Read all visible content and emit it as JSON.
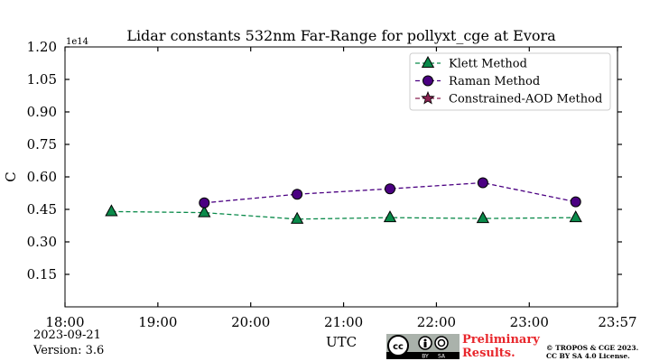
{
  "chart_data": {
    "type": "line",
    "title": "Lidar constants 532nm Far-Range for pollyxt_cge at Evora",
    "xlabel": "UTC",
    "ylabel": "C",
    "offset_text": "1e14",
    "xlim": [
      "18:00",
      "23:57"
    ],
    "ylim": [
      0,
      1.2
    ],
    "x_ticks": [
      "18:00",
      "19:00",
      "20:00",
      "21:00",
      "22:00",
      "23:00",
      "23:57"
    ],
    "y_ticks": [
      "0.15",
      "0.30",
      "0.45",
      "0.60",
      "0.75",
      "0.90",
      "1.05",
      "1.20"
    ],
    "legend_position": "top-right",
    "grid": false,
    "series": [
      {
        "name": "Klett Method",
        "marker": "triangle",
        "color": "#0a8a4a",
        "x": [
          "18:30",
          "19:30",
          "20:30",
          "21:30",
          "22:30",
          "23:30"
        ],
        "values": [
          0.44,
          0.435,
          0.405,
          0.412,
          0.408,
          0.412
        ]
      },
      {
        "name": "Raman Method",
        "marker": "circle",
        "color": "#4b0082",
        "x": [
          "19:30",
          "20:30",
          "21:30",
          "22:30",
          "23:30"
        ],
        "values": [
          0.48,
          0.52,
          0.545,
          0.573,
          0.485
        ]
      },
      {
        "name": "Constrained-AOD Method",
        "marker": "star",
        "color": "#8b2252",
        "x": [],
        "values": []
      }
    ]
  },
  "footer": {
    "date": "2023-09-21",
    "version": "Version: 3.6",
    "preliminary_line1": "Preliminary",
    "preliminary_line2": "Results.",
    "copyright_line1": "© TROPOS & CGE 2023.",
    "copyright_line2": "CC BY SA 4.0 License.",
    "license_badge_text": "cc",
    "license_by": "BY",
    "license_sa": "SA"
  }
}
